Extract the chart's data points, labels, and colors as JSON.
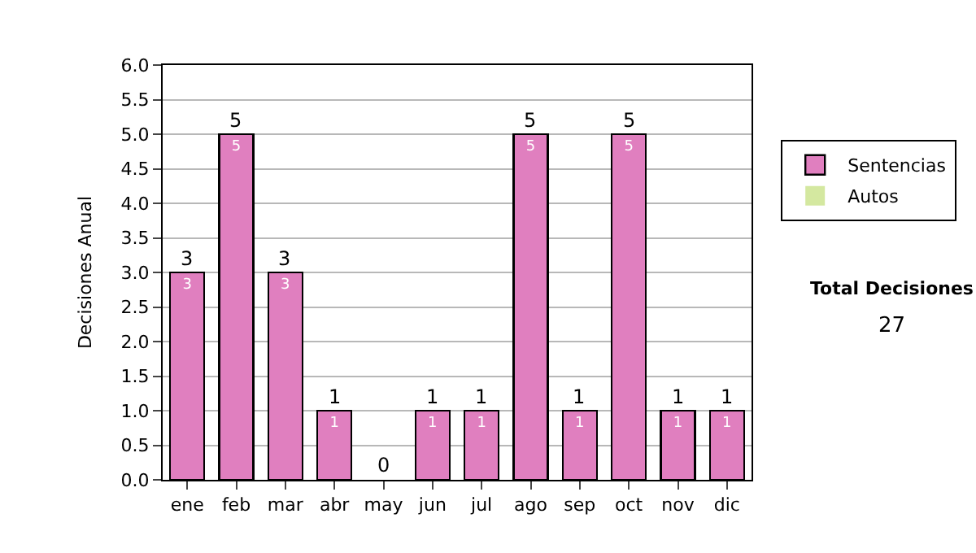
{
  "chart_data": {
    "type": "bar",
    "stacked": true,
    "ylabel": "Decisiones Anual",
    "categories": [
      "ene",
      "feb",
      "mar",
      "abr",
      "may",
      "jun",
      "jul",
      "ago",
      "sep",
      "oct",
      "nov",
      "dic"
    ],
    "series": [
      {
        "name": "Sentencias",
        "color": "#e07fbf",
        "values": [
          3,
          5,
          3,
          1,
          0,
          1,
          1,
          5,
          1,
          5,
          1,
          1
        ],
        "value_labels": [
          "3",
          "5",
          "3",
          "1",
          null,
          "1",
          "1",
          "5",
          "1",
          "5",
          "1",
          "1"
        ]
      },
      {
        "name": "Autos",
        "color": "#d4e8a0",
        "values": [
          0,
          0,
          0,
          0,
          0,
          0,
          0,
          0,
          0,
          0,
          0,
          0
        ]
      }
    ],
    "totals": [
      "3",
      "5",
      "3",
      "1",
      "0",
      "1",
      "1",
      "5",
      "1",
      "5",
      "1",
      "1"
    ],
    "ylim": [
      0,
      6
    ],
    "yticks": [
      {
        "value": 0,
        "label": "0.0"
      },
      {
        "value": 0.5,
        "label": "0.5"
      },
      {
        "value": 1,
        "label": "1.0"
      },
      {
        "value": 1.5,
        "label": "1.5"
      },
      {
        "value": 2,
        "label": "2.0"
      },
      {
        "value": 2.5,
        "label": "2.5"
      },
      {
        "value": 3,
        "label": "3.0"
      },
      {
        "value": 3.5,
        "label": "3.5"
      },
      {
        "value": 4,
        "label": "4.0"
      },
      {
        "value": 4.5,
        "label": "4.5"
      },
      {
        "value": 5,
        "label": "5.0"
      },
      {
        "value": 5.5,
        "label": "5.5"
      },
      {
        "value": 6,
        "label": "6.0"
      }
    ],
    "grid": "y",
    "legend": "right",
    "annotations": [
      "Total Decisiones",
      "27"
    ]
  }
}
